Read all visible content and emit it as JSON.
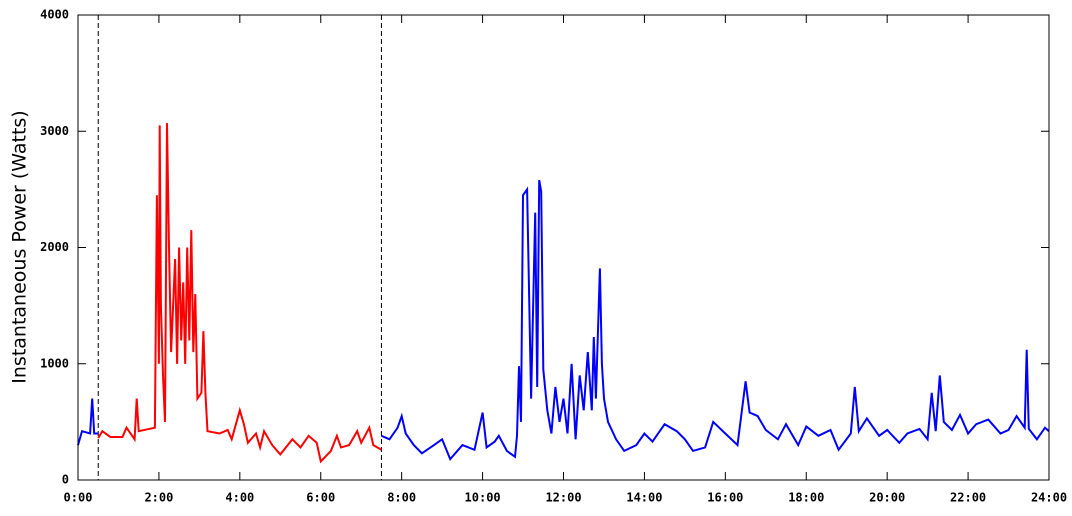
{
  "chart_data": {
    "type": "line",
    "y_label": "Instantaneous Power (Watts)",
    "xlim": [
      0,
      24
    ],
    "xticks": [
      {
        "value": 0,
        "label": "0:00"
      },
      {
        "value": 2,
        "label": "2:00"
      },
      {
        "value": 4,
        "label": "4:00"
      },
      {
        "value": 6,
        "label": "6:00"
      },
      {
        "value": 8,
        "label": "8:00"
      },
      {
        "value": 10,
        "label": "10:00"
      },
      {
        "value": 12,
        "label": "12:00"
      },
      {
        "value": 14,
        "label": "14:00"
      },
      {
        "value": 16,
        "label": "16:00"
      },
      {
        "value": 18,
        "label": "18:00"
      },
      {
        "value": 20,
        "label": "20:00"
      },
      {
        "value": 22,
        "label": "22:00"
      },
      {
        "value": 24,
        "label": "24:00"
      }
    ],
    "ylim": [
      0,
      4000
    ],
    "yticks": [
      0,
      1000,
      2000,
      3000,
      4000
    ],
    "vlines": [
      0.5,
      7.5
    ],
    "series": [
      {
        "color": "#0000ff",
        "x": [
          0,
          0.1,
          0.3,
          0.35,
          0.4,
          0.5
        ],
        "values": [
          300,
          420,
          400,
          700,
          400,
          400
        ]
      },
      {
        "color": "#ff0000",
        "x": [
          0.5,
          0.6,
          0.8,
          1.1,
          1.2,
          1.4,
          1.45,
          1.5,
          1.9,
          1.95,
          2.0,
          2.02,
          2.05,
          2.1,
          2.15,
          2.2,
          2.25,
          2.3,
          2.4,
          2.45,
          2.5,
          2.55,
          2.6,
          2.65,
          2.7,
          2.75,
          2.8,
          2.85,
          2.9,
          2.95,
          3.05,
          3.1,
          3.15,
          3.2,
          3.5,
          3.7,
          3.8,
          4.0,
          4.1,
          4.2,
          4.4,
          4.5,
          4.6,
          4.8,
          5.0,
          5.3,
          5.5,
          5.7,
          5.9,
          6.0,
          6.25,
          6.4,
          6.5,
          6.7,
          6.9,
          7.0,
          7.2,
          7.3,
          7.5
        ],
        "values": [
          360,
          420,
          370,
          370,
          450,
          350,
          700,
          420,
          450,
          2450,
          1000,
          3050,
          1500,
          900,
          500,
          3070,
          2000,
          1100,
          1900,
          1000,
          2000,
          1200,
          1700,
          1000,
          2000,
          1200,
          2150,
          1100,
          1600,
          700,
          750,
          1280,
          750,
          420,
          400,
          430,
          350,
          600,
          480,
          320,
          400,
          280,
          420,
          300,
          220,
          350,
          280,
          380,
          320,
          160,
          250,
          380,
          280,
          300,
          420,
          320,
          450,
          300,
          260
        ]
      },
      {
        "color": "#0000ff",
        "x": [
          7.5,
          7.7,
          7.9,
          8.0,
          8.1,
          8.3,
          8.5,
          8.8,
          9.0,
          9.2,
          9.5,
          9.8,
          10.0,
          10.1,
          10.3,
          10.4,
          10.6,
          10.8,
          10.85,
          10.9,
          10.95,
          11.0,
          11.1,
          11.2,
          11.3,
          11.35,
          11.4,
          11.45,
          11.5,
          11.6,
          11.7,
          11.8,
          11.9,
          12.0,
          12.1,
          12.2,
          12.3,
          12.4,
          12.5,
          12.6,
          12.7,
          12.75,
          12.8,
          12.9,
          12.95,
          13.0,
          13.1,
          13.3,
          13.5,
          13.8,
          14.0,
          14.2,
          14.5,
          14.8,
          15.0,
          15.2,
          15.5,
          15.7,
          16.0,
          16.3,
          16.5,
          16.6,
          16.8,
          17.0,
          17.3,
          17.5,
          17.8,
          18.0,
          18.3,
          18.6,
          18.8,
          19.1,
          19.2,
          19.3,
          19.5,
          19.8,
          20.0,
          20.3,
          20.5,
          20.8,
          21.0,
          21.1,
          21.2,
          21.3,
          21.4,
          21.6,
          21.8,
          22.0,
          22.2,
          22.5,
          22.8,
          23.0,
          23.2,
          23.4,
          23.45,
          23.5,
          23.7,
          23.9,
          24.0
        ],
        "values": [
          380,
          350,
          450,
          550,
          400,
          300,
          230,
          300,
          350,
          180,
          300,
          260,
          580,
          280,
          330,
          380,
          250,
          200,
          380,
          980,
          500,
          2450,
          2500,
          700,
          2300,
          800,
          2580,
          2480,
          950,
          600,
          400,
          800,
          500,
          700,
          400,
          1000,
          350,
          900,
          600,
          1100,
          600,
          1230,
          700,
          1820,
          1000,
          700,
          500,
          350,
          250,
          300,
          400,
          330,
          480,
          420,
          350,
          250,
          280,
          500,
          400,
          300,
          850,
          580,
          550,
          430,
          350,
          480,
          300,
          460,
          380,
          430,
          260,
          400,
          800,
          420,
          530,
          380,
          430,
          320,
          400,
          440,
          350,
          750,
          420,
          900,
          500,
          430,
          560,
          400,
          480,
          520,
          400,
          430,
          550,
          450,
          1120,
          440,
          350,
          450,
          420
        ]
      }
    ]
  }
}
